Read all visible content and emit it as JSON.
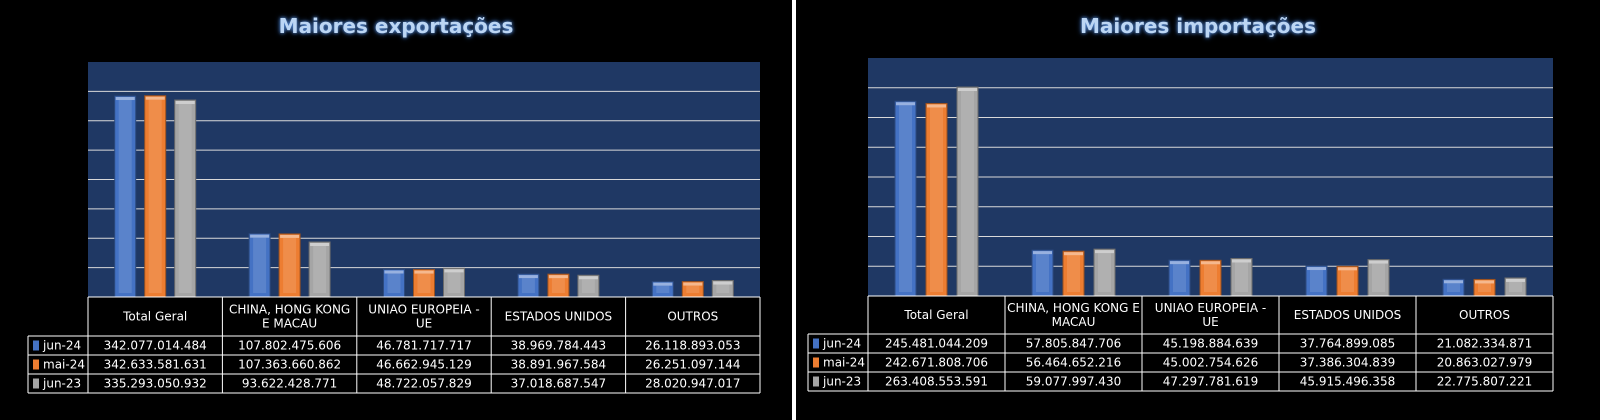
{
  "colors": {
    "jun-24": "#4472c4",
    "mai-24": "#ed7d31",
    "jun-23": "#a5a5a5",
    "plot_bg": "#1f3864"
  },
  "chart_data": [
    {
      "type": "bar",
      "title": "Maiores exportações",
      "categories": [
        "Total Geral",
        "CHINA, HONG KONG E MACAU",
        "UNIAO EUROPEIA - UE",
        "ESTADOS UNIDOS",
        "OUTROS"
      ],
      "series": [
        {
          "name": "jun-24",
          "values": [
            342077014484,
            107802475606,
            46781717717,
            38969784443,
            26118893053
          ],
          "labels": [
            "342.077.014.484",
            "107.802.475.606",
            "46.781.717.717",
            "38.969.784.443",
            "26.118.893.053"
          ]
        },
        {
          "name": "mai-24",
          "values": [
            342633581631,
            107363660862,
            46662945129,
            38891967584,
            26251097144
          ],
          "labels": [
            "342.633.581.631",
            "107.363.660.862",
            "46.662.945.129",
            "38.891.967.584",
            "26.251.097.144"
          ]
        },
        {
          "name": "jun-23",
          "values": [
            335293050932,
            93622428771,
            48722057829,
            37018687547,
            28020947017
          ],
          "labels": [
            "335.293.050.932",
            "93.622.428.771",
            "48.722.057.829",
            "37.018.687.547",
            "28.020.947.017"
          ]
        }
      ],
      "ylim": [
        0,
        400000000000
      ],
      "grid": true,
      "legend": "data-table-left"
    },
    {
      "type": "bar",
      "title": "Maiores importações",
      "categories": [
        "Total Geral",
        "CHINA, HONG KONG E MACAU",
        "UNIAO EUROPEIA - UE",
        "ESTADOS UNIDOS",
        "OUTROS"
      ],
      "series": [
        {
          "name": "jun-24",
          "values": [
            245481044209,
            57805847706,
            45198884639,
            37764899085,
            21082334871
          ],
          "labels": [
            "245.481.044.209",
            "57.805.847.706",
            "45.198.884.639",
            "37.764.899.085",
            "21.082.334.871"
          ]
        },
        {
          "name": "mai-24",
          "values": [
            242671808706,
            56464652216,
            45002754626,
            37386304839,
            20863027979
          ],
          "labels": [
            "242.671.808.706",
            "56.464.652.216",
            "45.002.754.626",
            "37.386.304.839",
            "20.863.027.979"
          ]
        },
        {
          "name": "jun-23",
          "values": [
            263408553591,
            59077997430,
            47297781619,
            45915496358,
            22775807221
          ],
          "labels": [
            "263.408.553.591",
            "59.077.997.430",
            "47.297.781.619",
            "45.915.496.358",
            "22.775.807.221"
          ]
        }
      ],
      "ylim": [
        0,
        300000000000
      ],
      "grid": true,
      "legend": "data-table-left"
    }
  ]
}
